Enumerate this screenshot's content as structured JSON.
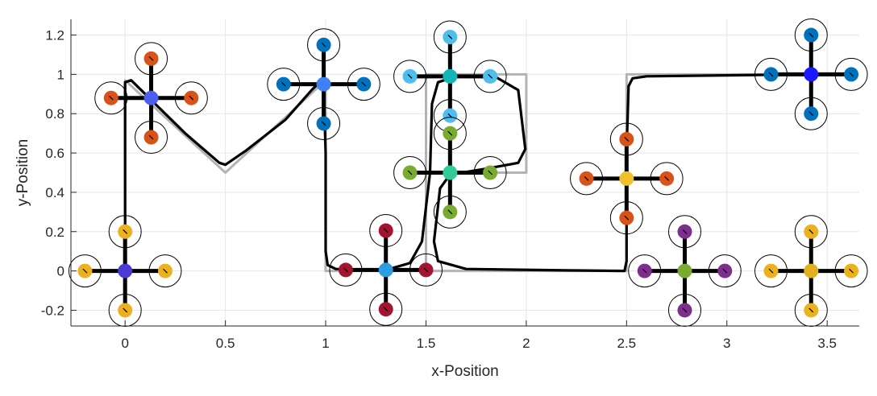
{
  "chart_data": {
    "type": "line",
    "xlabel": "x-Position",
    "ylabel": "y-Position",
    "xlim": [
      -0.27,
      3.66
    ],
    "ylim": [
      -0.28,
      1.28
    ],
    "xticks": [
      0,
      0.5,
      1,
      1.5,
      2,
      2.5,
      3,
      3.5
    ],
    "xtick_labels": [
      "0",
      "0.5",
      "1",
      "1.5",
      "2",
      "2.5",
      "3",
      "3.5"
    ],
    "yticks": [
      -0.2,
      0,
      0.2,
      0.4,
      0.6,
      0.8,
      1,
      1.2
    ],
    "ytick_labels": [
      "-0.2",
      "0",
      "0.2",
      "0.4",
      "0.6",
      "0.8",
      "1",
      "1.2"
    ],
    "grid": true,
    "series": [
      {
        "role": "reference",
        "color": "#b3b3b3",
        "points": [
          [
            0,
            0
          ],
          [
            0,
            0.97
          ],
          [
            0.5,
            0.5
          ],
          [
            1,
            0.97
          ],
          [
            1,
            0
          ],
          [
            1.5,
            0
          ],
          [
            1.5,
            1
          ],
          [
            2,
            1
          ],
          [
            2,
            0.5
          ],
          [
            1.5,
            0.5
          ],
          [
            1.5,
            0
          ],
          [
            2.5,
            0
          ],
          [
            2.5,
            1
          ],
          [
            3.5,
            1
          ]
        ]
      },
      {
        "role": "actual",
        "color": "#000000",
        "points": [
          [
            0,
            0
          ],
          [
            0,
            0.96
          ],
          [
            0.03,
            0.97
          ],
          [
            0.1,
            0.9
          ],
          [
            0.3,
            0.7
          ],
          [
            0.47,
            0.55
          ],
          [
            0.5,
            0.54
          ],
          [
            0.6,
            0.61
          ],
          [
            0.8,
            0.77
          ],
          [
            0.93,
            0.92
          ],
          [
            0.97,
            0.96
          ],
          [
            0.99,
            0.93
          ],
          [
            1.0,
            0.6
          ],
          [
            1.0,
            0.1
          ],
          [
            1.01,
            0.03
          ],
          [
            1.05,
            0.01
          ],
          [
            1.3,
            0.005
          ],
          [
            1.42,
            0.04
          ],
          [
            1.48,
            0.15
          ],
          [
            1.52,
            0.5
          ],
          [
            1.53,
            0.85
          ],
          [
            1.56,
            0.96
          ],
          [
            1.65,
            0.99
          ],
          [
            1.85,
            0.985
          ],
          [
            1.96,
            0.92
          ],
          [
            1.98,
            0.75
          ],
          [
            1.995,
            0.62
          ],
          [
            1.96,
            0.55
          ],
          [
            1.8,
            0.52
          ],
          [
            1.62,
            0.49
          ],
          [
            1.57,
            0.42
          ],
          [
            1.54,
            0.15
          ],
          [
            1.56,
            0.05
          ],
          [
            1.7,
            0.01
          ],
          [
            2.2,
            0.003
          ],
          [
            2.49,
            0.0
          ],
          [
            2.5,
            0.05
          ],
          [
            2.5,
            0.6
          ],
          [
            2.51,
            0.94
          ],
          [
            2.53,
            0.98
          ],
          [
            2.6,
            0.99
          ],
          [
            3.0,
            0.995
          ],
          [
            3.4,
            1.0
          ],
          [
            3.5,
            1.0
          ]
        ]
      }
    ],
    "robots": [
      {
        "center": [
          0,
          0
        ],
        "arm": 0.2,
        "center_color": "#4b3bd6",
        "rotor_colors": [
          "#edb120",
          "#edb120",
          "#edb120",
          "#edb120"
        ]
      },
      {
        "center": [
          0.13,
          0.88
        ],
        "arm": 0.2,
        "center_color": "#4d5ef2",
        "rotor_colors": [
          "#d95319",
          "#d95319",
          "#d95319",
          "#d95319"
        ]
      },
      {
        "center": [
          0.99,
          0.95
        ],
        "arm": 0.2,
        "center_color": "#3f80f5",
        "rotor_colors": [
          "#0072bd",
          "#0072bd",
          "#0072bd",
          "#0072bd"
        ]
      },
      {
        "center": [
          1.3,
          0.005
        ],
        "arm": 0.2,
        "center_color": "#2b9de0",
        "rotor_colors": [
          "#a2142f",
          "#a2142f",
          "#a2142f",
          "#a2142f"
        ]
      },
      {
        "center": [
          1.62,
          0.99
        ],
        "arm": 0.2,
        "center_color": "#14b4b8",
        "rotor_colors": [
          "#4dbeee",
          "#4dbeee",
          "#4dbeee",
          "#4dbeee"
        ]
      },
      {
        "center": [
          1.62,
          0.5
        ],
        "arm": 0.2,
        "center_color": "#33cc99",
        "rotor_colors": [
          "#77ac30",
          "#77ac30",
          "#77ac30",
          "#77ac30"
        ]
      },
      {
        "center": [
          2.5,
          0.47
        ],
        "arm": 0.2,
        "center_color": "#f2c028",
        "rotor_colors": [
          "#d95319",
          "#d95319",
          "#d95319",
          "#d95319"
        ]
      },
      {
        "center": [
          2.79,
          0.0
        ],
        "arm": 0.2,
        "center_color": "#77ac30",
        "rotor_colors": [
          "#7e2f8e",
          "#7e2f8e",
          "#7e2f8e",
          "#7e2f8e"
        ]
      },
      {
        "center": [
          3.42,
          0.0
        ],
        "arm": 0.2,
        "center_color": "#e0b020",
        "rotor_colors": [
          "#edb120",
          "#edb120",
          "#edb120",
          "#edb120"
        ]
      },
      {
        "center": [
          3.42,
          1.0
        ],
        "arm": 0.2,
        "center_color": "#1a1aff",
        "rotor_colors": [
          "#0072bd",
          "#0072bd",
          "#0072bd",
          "#0072bd"
        ]
      }
    ]
  }
}
